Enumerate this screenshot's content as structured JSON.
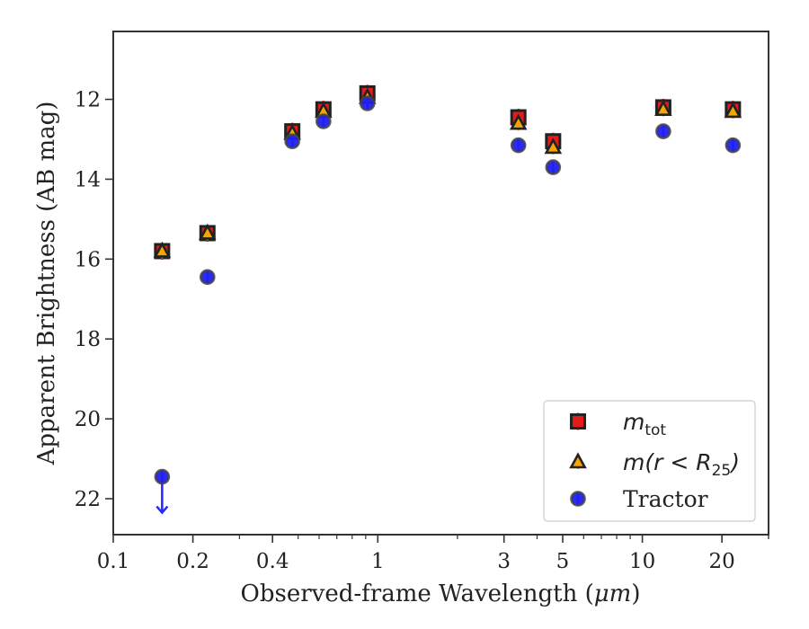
{
  "chart_data": {
    "type": "scatter",
    "xlabel_prefix": "Observed-frame Wavelength (",
    "xlabel_unit": "μm",
    "xlabel_suffix": ")",
    "ylabel": "Apparent Brightness (AB mag)",
    "xscale": "log",
    "xlim": [
      0.1,
      30
    ],
    "ylim": [
      22.9,
      10.3
    ],
    "y_inverted": true,
    "grid": false,
    "legend_position": "lower-right",
    "xticks": [
      {
        "value": 0.1,
        "label": "0.1"
      },
      {
        "value": 0.2,
        "label": "0.2"
      },
      {
        "value": 0.4,
        "label": "0.4"
      },
      {
        "value": 1,
        "label": "1"
      },
      {
        "value": 3,
        "label": "3"
      },
      {
        "value": 5,
        "label": "5"
      },
      {
        "value": 10,
        "label": "10"
      },
      {
        "value": 20,
        "label": "20"
      }
    ],
    "yticks": [
      {
        "value": 12,
        "label": "12"
      },
      {
        "value": 14,
        "label": "14"
      },
      {
        "value": 16,
        "label": "16"
      },
      {
        "value": 18,
        "label": "18"
      },
      {
        "value": 20,
        "label": "20"
      },
      {
        "value": 22,
        "label": "22"
      }
    ],
    "series": [
      {
        "name": "m_tot",
        "legend_main": "m",
        "legend_sub": "tot",
        "marker": "square",
        "color": "#e41a1c",
        "edge": "#222222",
        "points": [
          {
            "x": 0.153,
            "y": 15.8
          },
          {
            "x": 0.227,
            "y": 15.35
          },
          {
            "x": 0.475,
            "y": 12.8
          },
          {
            "x": 0.6231,
            "y": 12.25
          },
          {
            "x": 0.9134,
            "y": 11.85
          },
          {
            "x": 3.4,
            "y": 12.45
          },
          {
            "x": 4.6,
            "y": 13.05
          },
          {
            "x": 12.0,
            "y": 12.2
          },
          {
            "x": 22.0,
            "y": 12.25
          }
        ]
      },
      {
        "name": "m(r<R_25)",
        "legend_main": "m(r < R",
        "legend_sub": "25",
        "legend_end": ")",
        "marker": "triangle",
        "color": "#f5a700",
        "edge": "#222222",
        "points": [
          {
            "x": 0.153,
            "y": 15.8
          },
          {
            "x": 0.227,
            "y": 15.35
          },
          {
            "x": 0.475,
            "y": 12.85
          },
          {
            "x": 0.6231,
            "y": 12.3
          },
          {
            "x": 0.9134,
            "y": 11.95
          },
          {
            "x": 3.4,
            "y": 12.6
          },
          {
            "x": 4.6,
            "y": 13.2
          },
          {
            "x": 12.0,
            "y": 12.25
          },
          {
            "x": 22.0,
            "y": 12.3
          }
        ]
      },
      {
        "name": "Tractor",
        "legend_main": "Tractor",
        "marker": "circle",
        "color": "#1f1ff0",
        "edge": "#444444",
        "points": [
          {
            "x": 0.153,
            "y": 21.45,
            "upper_limit": true
          },
          {
            "x": 0.227,
            "y": 16.45
          },
          {
            "x": 0.475,
            "y": 13.05
          },
          {
            "x": 0.6231,
            "y": 12.55
          },
          {
            "x": 0.9134,
            "y": 12.1
          },
          {
            "x": 3.4,
            "y": 13.15
          },
          {
            "x": 4.6,
            "y": 13.7
          },
          {
            "x": 12.0,
            "y": 12.8
          },
          {
            "x": 22.0,
            "y": 13.15
          }
        ]
      }
    ]
  }
}
